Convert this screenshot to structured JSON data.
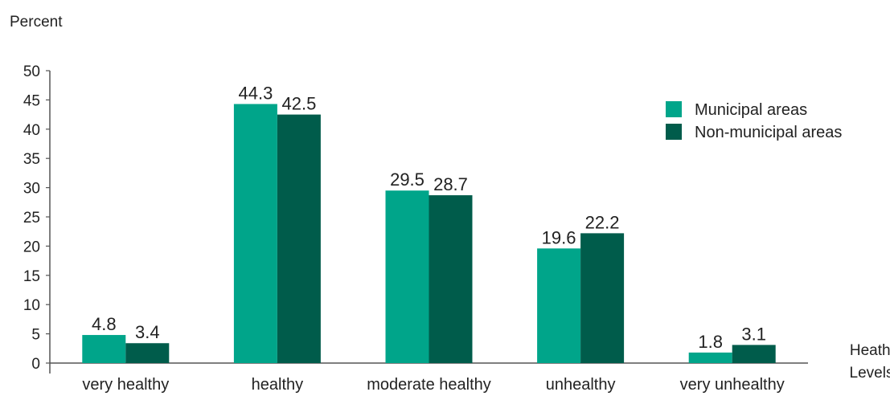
{
  "chart_data": {
    "type": "bar",
    "title": "",
    "ylabel": "Percent",
    "xlabel": "Heathy Levels",
    "categories": [
      "very healthy",
      "healthy",
      "moderate healthy",
      "unhealthy",
      "very unhealthy"
    ],
    "series": [
      {
        "name": "Municipal areas",
        "color": "#00a58a",
        "values": [
          4.8,
          44.3,
          29.5,
          19.6,
          1.8
        ],
        "value_labels": [
          "4.8",
          "44.3",
          "29.5",
          "19.6",
          "1.8"
        ]
      },
      {
        "name": "Non-municipal areas",
        "color": "#005c4b",
        "values": [
          3.4,
          42.5,
          28.7,
          22.2,
          3.1
        ],
        "value_labels": [
          "3.4",
          "42.5",
          "28.7",
          "22.2",
          "3.1"
        ]
      }
    ],
    "ylim": [
      0,
      50
    ],
    "yticks": [
      0,
      5,
      10,
      15,
      20,
      25,
      30,
      35,
      40,
      45,
      50
    ],
    "grid": false,
    "legend_position": "top-right"
  },
  "xlabel_lines": [
    "Heathy",
    "Levels"
  ]
}
